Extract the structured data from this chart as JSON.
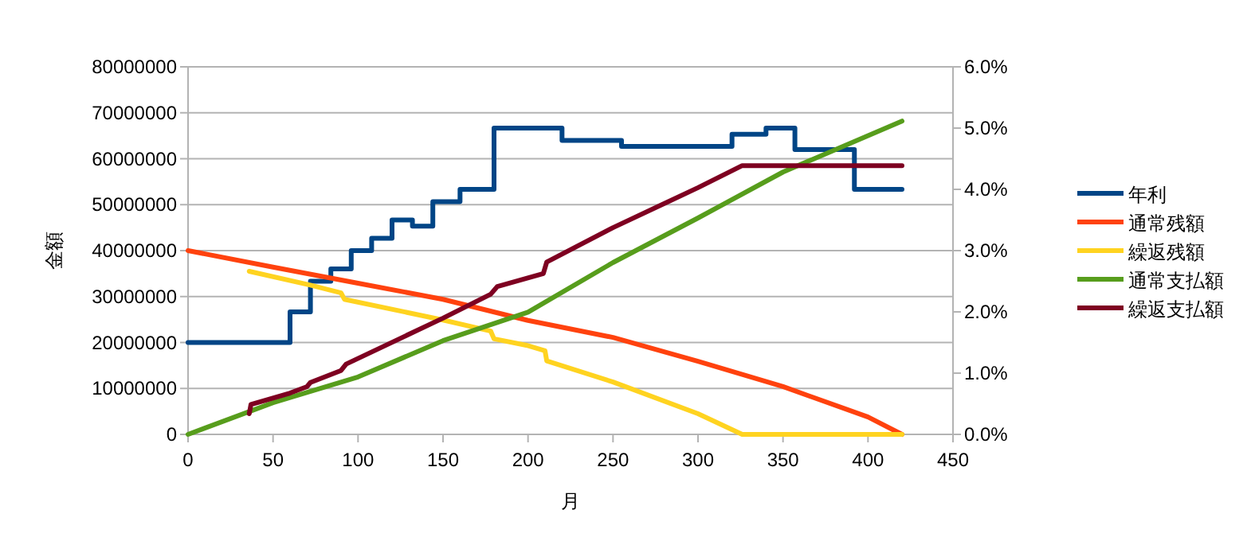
{
  "chart_data": {
    "type": "line",
    "xlabel": "月",
    "ylabel": "金額",
    "xlim": [
      0,
      450
    ],
    "xticks": [
      0,
      50,
      100,
      150,
      200,
      250,
      300,
      350,
      400,
      450
    ],
    "ylim": [
      0,
      80000000
    ],
    "yticks": [
      0,
      10000000,
      20000000,
      30000000,
      40000000,
      50000000,
      60000000,
      70000000,
      80000000
    ],
    "y2lim": [
      0,
      6
    ],
    "y2ticks": [
      {
        "value": 0,
        "label": "0.0%"
      },
      {
        "value": 1,
        "label": "1.0%"
      },
      {
        "value": 2,
        "label": "2.0%"
      },
      {
        "value": 3,
        "label": "3.0%"
      },
      {
        "value": 4,
        "label": "4.0%"
      },
      {
        "value": 5,
        "label": "5.0%"
      },
      {
        "value": 6,
        "label": "6.0%"
      }
    ],
    "grid": "y",
    "legend": "right",
    "series": [
      {
        "name": "年利",
        "type": "step",
        "axis": "y2",
        "color": "#004586",
        "x": [
          0,
          60,
          72,
          84,
          96,
          108,
          120,
          132,
          144,
          160,
          180,
          220,
          255,
          320,
          340,
          357,
          392,
          420
        ],
        "values": [
          1.5,
          2.0,
          2.5,
          2.7,
          3.0,
          3.2,
          3.5,
          3.4,
          3.8,
          4.0,
          5.0,
          4.8,
          4.7,
          4.9,
          5.0,
          4.65,
          4.0,
          4.0
        ]
      },
      {
        "name": "通常残額",
        "color": "#ff420e",
        "x": [
          0,
          50,
          100,
          150,
          200,
          250,
          300,
          350,
          400,
          420
        ],
        "values": [
          40000000,
          36400000,
          32900000,
          29400000,
          24800000,
          21100000,
          15900000,
          10400000,
          3800000,
          0
        ]
      },
      {
        "name": "繰返残額",
        "color": "#ffd320",
        "x": [
          36,
          72,
          90,
          92,
          150,
          178,
          180,
          199,
          210,
          211,
          250,
          300,
          326,
          420
        ],
        "values": [
          35500000,
          32500000,
          30800000,
          29400000,
          24900000,
          22500000,
          20800000,
          19400000,
          18200000,
          16000000,
          11400000,
          4500000,
          0,
          0
        ]
      },
      {
        "name": "通常支払額",
        "color": "#579d1c",
        "x": [
          0,
          50,
          100,
          150,
          200,
          250,
          300,
          350,
          420
        ],
        "values": [
          0,
          6900000,
          12500000,
          20400000,
          26600000,
          37400000,
          47100000,
          57100000,
          68200000
        ]
      },
      {
        "name": "繰返支払額",
        "color": "#7e0021",
        "x": [
          36,
          37,
          60,
          70,
          72,
          90,
          93,
          150,
          178,
          182,
          209,
          211,
          250,
          300,
          326,
          420
        ],
        "values": [
          4500000,
          6500000,
          9000000,
          10400000,
          11300000,
          13900000,
          15300000,
          25300000,
          30500000,
          32200000,
          35000000,
          37500000,
          45000000,
          53700000,
          58500000,
          58500000
        ]
      }
    ]
  }
}
